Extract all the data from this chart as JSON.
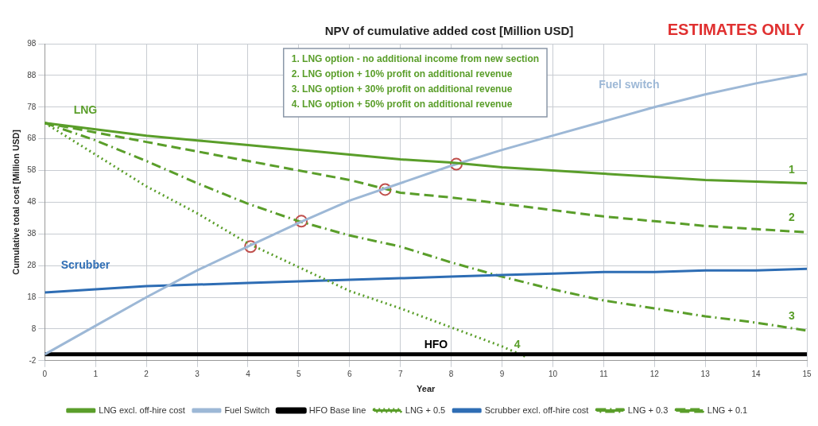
{
  "chart_data": {
    "type": "line",
    "title": "NPV of cumulative added cost [Million USD]",
    "subtitle": "ESTIMATES ONLY",
    "xlabel": "Year",
    "ylabel": "Cumulative total cost [Million USD]",
    "x": [
      0,
      1,
      2,
      3,
      4,
      5,
      6,
      7,
      8,
      9,
      10,
      11,
      12,
      13,
      14,
      15
    ],
    "xlim": [
      0,
      15
    ],
    "xticks": [
      0,
      1,
      2,
      3,
      4,
      5,
      6,
      7,
      8,
      9,
      10,
      11,
      12,
      13,
      14,
      15
    ],
    "ylim": [
      -2,
      98
    ],
    "yticks": [
      -2,
      8,
      18,
      28,
      38,
      48,
      58,
      68,
      78,
      88,
      98
    ],
    "grid": true,
    "legend": "bottom",
    "marker": "none",
    "series": [
      {
        "name": "LNG excl. off-hire cost",
        "color": "#5a9e2a",
        "line_style": "solid",
        "values": [
          73,
          71,
          69,
          67.5,
          66,
          64.5,
          63,
          61.5,
          60.5,
          59,
          58,
          57,
          56,
          55,
          54.5,
          54
        ]
      },
      {
        "name": "Fuel Switch",
        "color": "#9db8d6",
        "line_style": "solid",
        "values": [
          0,
          9,
          18,
          26.5,
          34,
          41.5,
          48.5,
          54,
          59.5,
          64.5,
          69,
          73.5,
          78,
          82,
          85.5,
          88.5
        ]
      },
      {
        "name": "HFO Base line",
        "color": "#000000",
        "line_style": "solid",
        "values": [
          0,
          0,
          0,
          0,
          0,
          0,
          0,
          0,
          0,
          0,
          0,
          0,
          0,
          0,
          0,
          0
        ]
      },
      {
        "name": "LNG + 0.5",
        "color": "#5a9e2a",
        "line_style": "dotted",
        "x": [
          0,
          1,
          2,
          3,
          4,
          5,
          6,
          7,
          8,
          9,
          9.5
        ],
        "values": [
          73,
          63,
          53,
          44.5,
          35,
          27.5,
          20,
          14.5,
          8.5,
          2.5,
          -1
        ]
      },
      {
        "name": "Scrubber excl. off-hire cost",
        "color": "#2e6db4",
        "line_style": "solid",
        "values": [
          19.5,
          20.5,
          21.5,
          22,
          22.5,
          23,
          23.5,
          24,
          24.5,
          25,
          25.5,
          26,
          26,
          26.5,
          26.5,
          27
        ]
      },
      {
        "name": "LNG + 0.3",
        "color": "#5a9e2a",
        "line_style": "dashdot",
        "values": [
          73,
          67.5,
          61,
          54,
          47.5,
          42,
          37.5,
          34,
          29,
          24.5,
          20.5,
          17,
          14.5,
          12,
          10,
          7.5
        ]
      },
      {
        "name": "LNG + 0.1",
        "color": "#5a9e2a",
        "line_style": "dashed",
        "values": [
          73,
          70,
          67,
          64,
          61,
          58,
          55,
          51,
          49.5,
          47.5,
          45.5,
          43.5,
          42,
          40.5,
          39.5,
          38.5
        ]
      },
      {
        "type": "scatter",
        "color": "#c0504d",
        "marker": "circle",
        "x": [
          4.05,
          5.05,
          6.7,
          8.1
        ],
        "values": [
          34,
          42,
          52,
          60
        ]
      }
    ],
    "annotations": [
      "1. LNG option - no additional income from new section",
      "2. LNG option + 10% profit on additional revenue",
      "3. LNG option + 30% profit on additional revenue",
      "4. LNG option + 50% profit on additional revenue",
      "LNG",
      "Fuel switch",
      "Scrubber",
      "HFO",
      "1",
      "2",
      "3",
      "4"
    ]
  }
}
